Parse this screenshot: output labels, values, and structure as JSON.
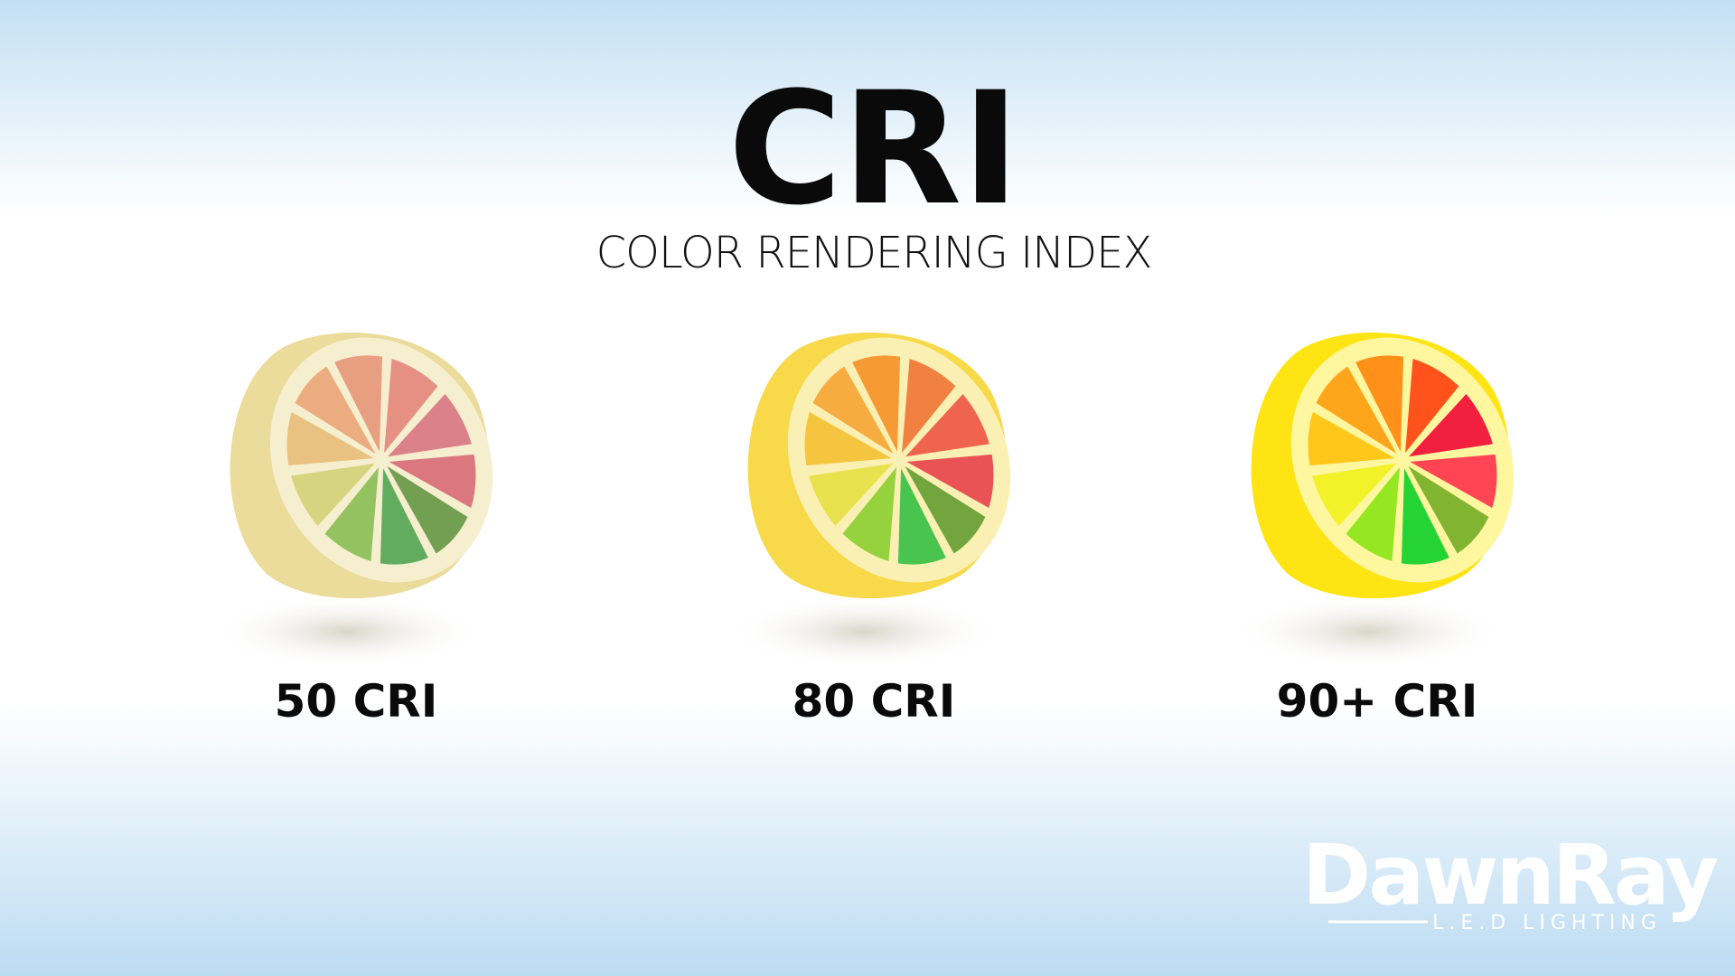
{
  "header": {
    "title": "CRI",
    "subtitle": "COLOR RENDERING INDEX"
  },
  "items": [
    {
      "label": "50 CRI"
    },
    {
      "label": "80 CRI"
    },
    {
      "label": "90+ CRI"
    }
  ],
  "logo": {
    "name": "DawnRay",
    "tagline": "L.E.D LIGHTING"
  }
}
